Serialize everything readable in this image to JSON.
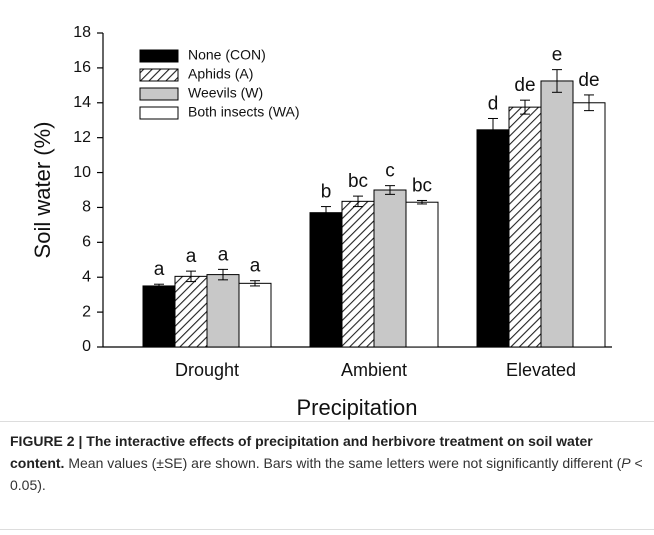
{
  "chart_data": {
    "type": "bar",
    "x_label": "Precipitation",
    "y_label": "Soil water (%)",
    "categories": [
      "Drought",
      "Ambient",
      "Elevated"
    ],
    "series": [
      {
        "name": "None (CON)",
        "color": "#000000",
        "fill": "solid",
        "values": [
          3.5,
          7.7,
          12.45
        ],
        "errors": [
          0.1,
          0.35,
          0.65
        ],
        "letters": [
          "a",
          "b",
          "d"
        ]
      },
      {
        "name": "Aphids (A)",
        "color": "#ffffff",
        "fill": "hatch",
        "values": [
          4.05,
          8.35,
          13.75
        ],
        "errors": [
          0.3,
          0.3,
          0.4
        ],
        "letters": [
          "a",
          "bc",
          "de"
        ]
      },
      {
        "name": "Weevils (W)",
        "color": "#c8c8c8",
        "fill": "solid",
        "values": [
          4.15,
          9.0,
          15.25
        ],
        "errors": [
          0.3,
          0.25,
          0.65
        ],
        "letters": [
          "a",
          "c",
          "e"
        ]
      },
      {
        "name": "Both insects (WA)",
        "color": "#ffffff",
        "fill": "solid",
        "values": [
          3.65,
          8.3,
          14.0
        ],
        "errors": [
          0.15,
          0.1,
          0.45
        ],
        "letters": [
          "a",
          "bc",
          "de"
        ]
      }
    ],
    "ylim": [
      0,
      18
    ],
    "yticks": [
      0,
      2,
      4,
      6,
      8,
      10,
      12,
      14,
      16,
      18
    ],
    "legend": "upper left"
  },
  "caption": {
    "label": "FIGURE 2 |",
    "title": "The interactive effects of precipitation and herbivore treatment on soil water content.",
    "text_before": "Mean values (±SE) are shown. Bars with the same letters were not significantly different (",
    "italic": "P",
    "text_after": " < 0.05)."
  }
}
